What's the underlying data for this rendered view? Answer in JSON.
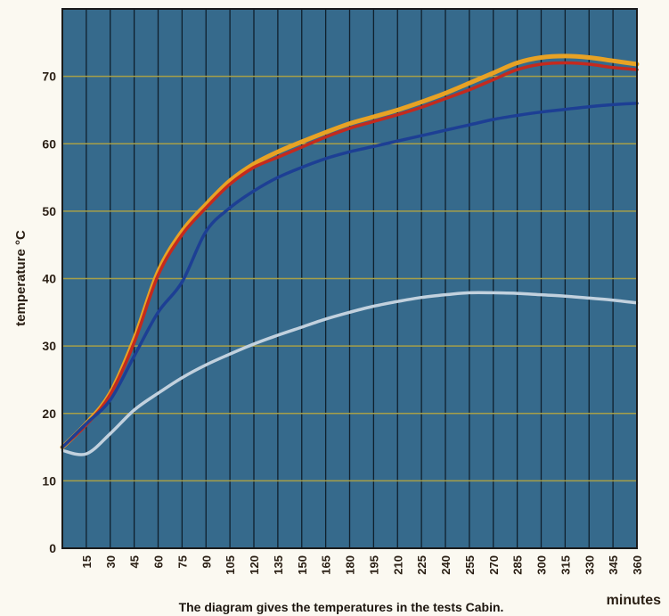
{
  "chart_data": {
    "type": "line",
    "ylabel": "temperature °C",
    "xlabel": "minutes",
    "caption": "The diagram gives the temperatures in the tests Cabin.",
    "xlim": [
      0,
      360
    ],
    "ylim": [
      0,
      80
    ],
    "y_ticks": [
      0,
      10,
      20,
      30,
      40,
      50,
      60,
      70
    ],
    "x_ticks": [
      15,
      30,
      45,
      60,
      75,
      90,
      105,
      120,
      135,
      150,
      165,
      180,
      195,
      210,
      225,
      240,
      255,
      270,
      285,
      300,
      315,
      330,
      345,
      360
    ],
    "grid": true,
    "series": [
      {
        "color": "#e8a224",
        "x": [
          0,
          15,
          30,
          45,
          60,
          75,
          90,
          105,
          120,
          135,
          150,
          165,
          180,
          195,
          210,
          225,
          240,
          255,
          270,
          285,
          300,
          315,
          330,
          345,
          360
        ],
        "y": [
          15,
          18.5,
          23,
          31,
          41,
          47,
          51,
          54.5,
          57,
          58.8,
          60.3,
          61.7,
          63,
          64,
          65,
          66.2,
          67.5,
          69,
          70.5,
          72,
          72.8,
          73,
          72.8,
          72.3,
          71.8
        ]
      },
      {
        "color": "#c42a1e",
        "x": [
          0,
          15,
          30,
          45,
          60,
          75,
          90,
          105,
          120,
          135,
          150,
          165,
          180,
          195,
          210,
          225,
          240,
          255,
          270,
          285,
          300,
          315,
          330,
          345,
          360
        ],
        "y": [
          15,
          18.3,
          22.8,
          30.5,
          40.5,
          46.5,
          50.5,
          54,
          56.5,
          58,
          59.5,
          61,
          62.3,
          63.3,
          64.3,
          65.4,
          66.7,
          68,
          69.5,
          71,
          71.8,
          72,
          71.8,
          71.3,
          71
        ]
      },
      {
        "color": "#1d3f94",
        "x": [
          0,
          15,
          30,
          45,
          60,
          75,
          90,
          105,
          120,
          135,
          150,
          165,
          180,
          195,
          210,
          225,
          240,
          255,
          270,
          285,
          300,
          315,
          330,
          345,
          360
        ],
        "y": [
          15,
          18.5,
          22,
          28.5,
          35,
          39.5,
          47,
          50.5,
          53,
          55,
          56.5,
          57.8,
          58.8,
          59.6,
          60.4,
          61.2,
          62,
          62.8,
          63.6,
          64.2,
          64.7,
          65.1,
          65.5,
          65.8,
          66
        ]
      },
      {
        "color": "#c2d1de",
        "x": [
          0,
          15,
          30,
          45,
          60,
          75,
          90,
          105,
          120,
          135,
          150,
          165,
          180,
          195,
          210,
          225,
          240,
          255,
          270,
          285,
          300,
          315,
          330,
          345,
          360
        ],
        "y": [
          14.5,
          14,
          17,
          20.5,
          23,
          25.3,
          27.2,
          28.8,
          30.3,
          31.6,
          32.8,
          34,
          35,
          35.9,
          36.6,
          37.2,
          37.6,
          37.9,
          37.9,
          37.8,
          37.6,
          37.4,
          37.1,
          36.8,
          36.4
        ]
      }
    ]
  }
}
